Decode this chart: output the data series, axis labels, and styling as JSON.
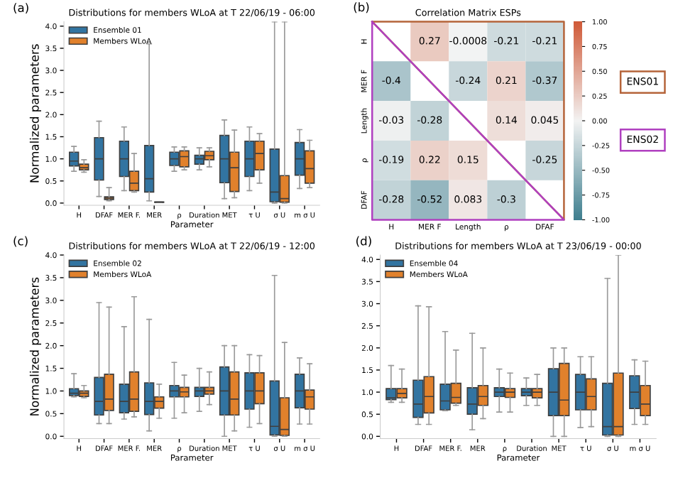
{
  "chart_data": [
    {
      "type": "box",
      "title": "Distributions for members WLoA at T 22/06/19 - 06:00",
      "xlabel": "Parameter",
      "ylabel": "Normalized parameters",
      "annotations": [
        "(a)"
      ],
      "categories": [
        "H",
        "DFAF",
        "MER F.",
        "MER",
        "ρ",
        "Duration",
        "MET",
        "τ U",
        "σ U",
        "m σ U"
      ],
      "ylim": [
        -0.05,
        4.1
      ],
      "yticks": [
        {
          "value": 0,
          "label": "0.0"
        },
        {
          "value": 0.5,
          "label": "0.5"
        },
        {
          "value": 1,
          "label": "1.0"
        },
        {
          "value": 1.5,
          "label": "1.5"
        },
        {
          "value": 2,
          "label": "2.0"
        },
        {
          "value": 2.5,
          "label": "2.5"
        },
        {
          "value": 3,
          "label": "3.0"
        },
        {
          "value": 3.5,
          "label": "3.5"
        },
        {
          "value": 4,
          "label": "4.0"
        }
      ],
      "legend": "top left",
      "grid": false,
      "series": [
        {
          "name": "Ensemble 01",
          "color": "#3274a1",
          "boxes": [
            {
              "low": 0.72,
              "q1": 0.84,
              "median": 0.95,
              "q3": 1.15,
              "high": 1.28
            },
            {
              "low": 0.15,
              "q1": 0.52,
              "median": 1.0,
              "q3": 1.48,
              "high": 1.85
            },
            {
              "low": 0.28,
              "q1": 0.6,
              "median": 1.0,
              "q3": 1.4,
              "high": 1.72
            },
            {
              "low": 0.05,
              "q1": 0.25,
              "median": 0.55,
              "q3": 1.3,
              "high": 3.6
            },
            {
              "low": 0.72,
              "q1": 0.85,
              "median": 1.0,
              "q3": 1.15,
              "high": 1.27
            },
            {
              "low": 0.75,
              "q1": 0.88,
              "median": 1.0,
              "q3": 1.08,
              "high": 1.25
            },
            {
              "low": 0.1,
              "q1": 0.46,
              "median": 1.0,
              "q3": 1.53,
              "high": 1.88
            },
            {
              "low": 0.28,
              "q1": 0.6,
              "median": 1.0,
              "q3": 1.4,
              "high": 1.72
            },
            {
              "low": 0.0,
              "q1": 0.03,
              "median": 0.25,
              "q3": 1.22,
              "high": 4.1
            },
            {
              "low": 0.33,
              "q1": 0.63,
              "median": 1.0,
              "q3": 1.37,
              "high": 1.66
            }
          ]
        },
        {
          "name": "Members WLoA",
          "color": "#e1812c",
          "boxes": [
            {
              "low": 0.7,
              "q1": 0.75,
              "median": 0.8,
              "q3": 0.88,
              "high": 0.98
            },
            {
              "low": 0.05,
              "q1": 0.08,
              "median": 0.11,
              "q3": 0.14,
              "high": 0.35
            },
            {
              "low": 0.25,
              "q1": 0.28,
              "median": 0.45,
              "q3": 0.72,
              "high": 1.12
            },
            {
              "low": 0.01,
              "q1": 0.015,
              "median": 0.02,
              "q3": 0.025,
              "high": 0.03
            },
            {
              "low": 0.75,
              "q1": 0.82,
              "median": 1.05,
              "q3": 1.18,
              "high": 1.27
            },
            {
              "low": 0.82,
              "q1": 0.98,
              "median": 1.07,
              "q3": 1.17,
              "high": 1.25
            },
            {
              "low": 0.12,
              "q1": 0.26,
              "median": 0.8,
              "q3": 1.15,
              "high": 1.65
            },
            {
              "low": 0.45,
              "q1": 0.75,
              "median": 1.12,
              "q3": 1.4,
              "high": 1.57
            },
            {
              "low": 0.0,
              "q1": 0.02,
              "median": 0.1,
              "q3": 0.62,
              "high": 4.1
            },
            {
              "low": 0.35,
              "q1": 0.45,
              "median": 0.78,
              "q3": 1.18,
              "high": 1.42
            }
          ]
        }
      ]
    },
    {
      "type": "heatmap",
      "title": "Correlation Matrix ESPs",
      "annotations": [
        "(b)",
        "ENS01",
        "ENS02"
      ],
      "categories": [
        "H",
        "MER F",
        "Length",
        "ρ",
        "DFAF"
      ],
      "y_categories": [
        "H",
        "MER F",
        "Length",
        "ρ",
        "DFAF"
      ],
      "cells": [
        [
          null,
          0.27,
          -0.0008,
          -0.21,
          -0.21
        ],
        [
          -0.4,
          null,
          -0.24,
          0.21,
          -0.37
        ],
        [
          -0.03,
          -0.28,
          null,
          0.14,
          0.045
        ],
        [
          -0.19,
          0.22,
          0.15,
          null,
          -0.25
        ],
        [
          -0.28,
          -0.52,
          0.083,
          -0.3,
          null
        ]
      ],
      "data_labels": true,
      "clim": [
        -1,
        1
      ],
      "cticks": [
        {
          "value": -1,
          "label": "-1.00"
        },
        {
          "value": -0.75,
          "label": "-0.75"
        },
        {
          "value": -0.5,
          "label": "-0.50"
        },
        {
          "value": -0.25,
          "label": "-0.25"
        },
        {
          "value": 0,
          "label": "0.00"
        },
        {
          "value": 0.25,
          "label": "0.25"
        },
        {
          "value": 0.5,
          "label": "0.50"
        },
        {
          "value": 0.75,
          "label": "0.75"
        },
        {
          "value": 1,
          "label": "1.00"
        }
      ]
    },
    {
      "type": "box",
      "title": "Distributions for members WLoA at T 22/06/19 - 12:00",
      "xlabel": "Parameter",
      "ylabel": "Normalized parameters",
      "annotations": [
        "(c)"
      ],
      "categories": [
        "H",
        "DFAF",
        "MER F.",
        "MER",
        "ρ",
        "Duration",
        "MET",
        "τ U",
        "σ U",
        "m σ U"
      ],
      "ylim": [
        -0.05,
        4.0
      ],
      "yticks": [
        {
          "value": 0,
          "label": "0.0"
        },
        {
          "value": 0.5,
          "label": "0.5"
        },
        {
          "value": 1,
          "label": "1.0"
        },
        {
          "value": 1.5,
          "label": "1.5"
        },
        {
          "value": 2,
          "label": "2.0"
        },
        {
          "value": 2.5,
          "label": "2.5"
        },
        {
          "value": 3,
          "label": "3.0"
        },
        {
          "value": 3.5,
          "label": "3.5"
        },
        {
          "value": 4,
          "label": "4.0"
        }
      ],
      "legend": "top left",
      "grid": false,
      "series": [
        {
          "name": "Ensemble 02",
          "color": "#3274a1",
          "boxes": [
            {
              "low": 0.87,
              "q1": 0.9,
              "median": 0.95,
              "q3": 1.05,
              "high": 1.38
            },
            {
              "low": 0.28,
              "q1": 0.47,
              "median": 0.77,
              "q3": 1.3,
              "high": 2.95
            },
            {
              "low": 0.38,
              "q1": 0.52,
              "median": 0.77,
              "q3": 1.15,
              "high": 2.42
            },
            {
              "low": 0.12,
              "q1": 0.48,
              "median": 0.77,
              "q3": 1.18,
              "high": 2.58
            },
            {
              "low": 0.4,
              "q1": 0.87,
              "median": 1.0,
              "q3": 1.12,
              "high": 1.63
            },
            {
              "low": 0.55,
              "q1": 0.88,
              "median": 1.0,
              "q3": 1.08,
              "high": 1.5
            },
            {
              "low": 0.0,
              "q1": 0.47,
              "median": 1.0,
              "q3": 1.53,
              "high": 2.0
            },
            {
              "low": 0.2,
              "q1": 0.6,
              "median": 1.0,
              "q3": 1.4,
              "high": 1.8
            },
            {
              "low": 0.0,
              "q1": 0.03,
              "median": 0.22,
              "q3": 1.22,
              "high": 3.55
            },
            {
              "low": 0.27,
              "q1": 0.63,
              "median": 1.0,
              "q3": 1.37,
              "high": 1.73
            }
          ]
        },
        {
          "name": "Members WLoA",
          "color": "#e1812c",
          "boxes": [
            {
              "low": 0.85,
              "q1": 0.88,
              "median": 0.95,
              "q3": 1.0,
              "high": 1.12
            },
            {
              "low": 0.28,
              "q1": 0.57,
              "median": 0.82,
              "q3": 1.37,
              "high": 2.85
            },
            {
              "low": 0.43,
              "q1": 0.55,
              "median": 0.82,
              "q3": 1.42,
              "high": 3.08
            },
            {
              "low": 0.4,
              "q1": 0.62,
              "median": 0.77,
              "q3": 0.87,
              "high": 1.15
            },
            {
              "low": 0.52,
              "q1": 0.87,
              "median": 0.98,
              "q3": 1.08,
              "high": 1.35
            },
            {
              "low": 0.7,
              "q1": 0.93,
              "median": 1.0,
              "q3": 1.08,
              "high": 1.42
            },
            {
              "low": 0.12,
              "q1": 0.47,
              "median": 0.82,
              "q3": 1.42,
              "high": 2.0
            },
            {
              "low": 0.28,
              "q1": 0.72,
              "median": 1.0,
              "q3": 1.4,
              "high": 1.78
            },
            {
              "low": 0.0,
              "q1": 0.02,
              "median": 0.15,
              "q3": 0.85,
              "high": 2.07
            },
            {
              "low": 0.27,
              "q1": 0.6,
              "median": 0.87,
              "q3": 1.02,
              "high": 1.6
            }
          ]
        }
      ]
    },
    {
      "type": "box",
      "title": "Distributions for members WLoA at T 23/06/19 - 00:00",
      "xlabel": "Parameter",
      "annotations": [
        "(d)"
      ],
      "categories": [
        "H",
        "DFAF",
        "MER F.",
        "MER",
        "ρ",
        "Duration",
        "MET",
        "τ U",
        "σ U",
        "m σ U"
      ],
      "ylim": [
        -0.05,
        4.1
      ],
      "yticks": [
        {
          "value": 0,
          "label": "0.0"
        },
        {
          "value": 0.5,
          "label": "0.5"
        },
        {
          "value": 1,
          "label": "1.0"
        },
        {
          "value": 1.5,
          "label": "1.5"
        },
        {
          "value": 2,
          "label": "2.0"
        },
        {
          "value": 2.5,
          "label": "2.5"
        },
        {
          "value": 3,
          "label": "3.0"
        },
        {
          "value": 3.5,
          "label": "3.5"
        },
        {
          "value": 4,
          "label": "4.0"
        }
      ],
      "legend": "top left",
      "grid": false,
      "series": [
        {
          "name": "Ensemble 04",
          "color": "#3274a1",
          "boxes": [
            {
              "low": 0.77,
              "q1": 0.83,
              "median": 0.87,
              "q3": 1.08,
              "high": 1.6
            },
            {
              "low": 0.27,
              "q1": 0.43,
              "median": 0.73,
              "q3": 1.27,
              "high": 2.95
            },
            {
              "low": 0.58,
              "q1": 0.6,
              "median": 0.8,
              "q3": 1.18,
              "high": 2.37
            },
            {
              "low": 0.15,
              "q1": 0.5,
              "median": 0.73,
              "q3": 1.1,
              "high": 2.33
            },
            {
              "low": 0.55,
              "q1": 0.9,
              "median": 1.0,
              "q3": 1.1,
              "high": 1.52
            },
            {
              "low": 0.7,
              "q1": 0.92,
              "median": 1.0,
              "q3": 1.08,
              "high": 1.32
            },
            {
              "low": 0.0,
              "q1": 0.47,
              "median": 1.0,
              "q3": 1.53,
              "high": 2.0
            },
            {
              "low": 0.2,
              "q1": 0.6,
              "median": 1.0,
              "q3": 1.4,
              "high": 1.8
            },
            {
              "low": 0.0,
              "q1": 0.03,
              "median": 0.22,
              "q3": 1.2,
              "high": 3.57
            },
            {
              "low": 0.27,
              "q1": 0.63,
              "median": 1.0,
              "q3": 1.37,
              "high": 1.73
            }
          ]
        },
        {
          "name": "Members WLoA",
          "color": "#e1812c",
          "boxes": [
            {
              "low": 0.77,
              "q1": 0.87,
              "median": 0.97,
              "q3": 1.08,
              "high": 1.52
            },
            {
              "low": 0.27,
              "q1": 0.53,
              "median": 0.9,
              "q3": 1.35,
              "high": 2.93
            },
            {
              "low": 0.7,
              "q1": 0.75,
              "median": 0.88,
              "q3": 1.2,
              "high": 1.95
            },
            {
              "low": 0.4,
              "q1": 0.7,
              "median": 0.9,
              "q3": 1.15,
              "high": 2.0
            },
            {
              "low": 0.55,
              "q1": 0.88,
              "median": 1.0,
              "q3": 1.08,
              "high": 1.43
            },
            {
              "low": 0.7,
              "q1": 0.87,
              "median": 1.0,
              "q3": 1.08,
              "high": 1.4
            },
            {
              "low": 0.0,
              "q1": 0.47,
              "median": 0.82,
              "q3": 1.65,
              "high": 2.0
            },
            {
              "low": 0.22,
              "q1": 0.6,
              "median": 0.9,
              "q3": 1.3,
              "high": 1.8
            },
            {
              "low": 0.0,
              "q1": 0.03,
              "median": 0.22,
              "q3": 1.43,
              "high": 4.1
            },
            {
              "low": 0.27,
              "q1": 0.47,
              "median": 0.73,
              "q3": 1.15,
              "high": 1.7
            }
          ]
        }
      ]
    }
  ]
}
